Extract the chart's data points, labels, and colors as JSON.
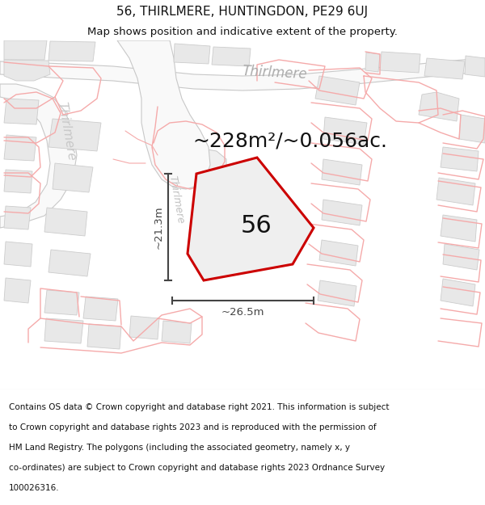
{
  "title": "56, THIRLMERE, HUNTINGDON, PE29 6UJ",
  "subtitle": "Map shows position and indicative extent of the property.",
  "area_text": "~228m²/~0.056ac.",
  "number": "56",
  "dim_height": "~21.3m",
  "dim_width": "~26.5m",
  "street_label_1": "Thirlmere",
  "street_label_2": "Thirlmere",
  "footer_lines": [
    "Contains OS data © Crown copyright and database right 2021. This information is subject",
    "to Crown copyright and database rights 2023 and is reproduced with the permission of",
    "HM Land Registry. The polygons (including the associated geometry, namely x, y",
    "co-ordinates) are subject to Crown copyright and database rights 2023 Ordnance Survey",
    "100026316."
  ],
  "bg_color": "#ffffff",
  "road_fill": "#ffffff",
  "road_outline": "#c8c8c8",
  "building_fill": "#e8e8e8",
  "building_outline": "#cccccc",
  "pink_line": "#f5aaaa",
  "plot_fill": "#efefef",
  "plot_edge": "#cc0000",
  "dim_color": "#444444",
  "text_color": "#111111",
  "street_color": "#aaaaaa",
  "footer_color": "#111111",
  "title_fontsize": 11,
  "subtitle_fontsize": 9.5,
  "area_fontsize": 18,
  "number_fontsize": 22,
  "dim_fontsize": 9.5,
  "street_fontsize": 12,
  "footer_fontsize": 7.5
}
